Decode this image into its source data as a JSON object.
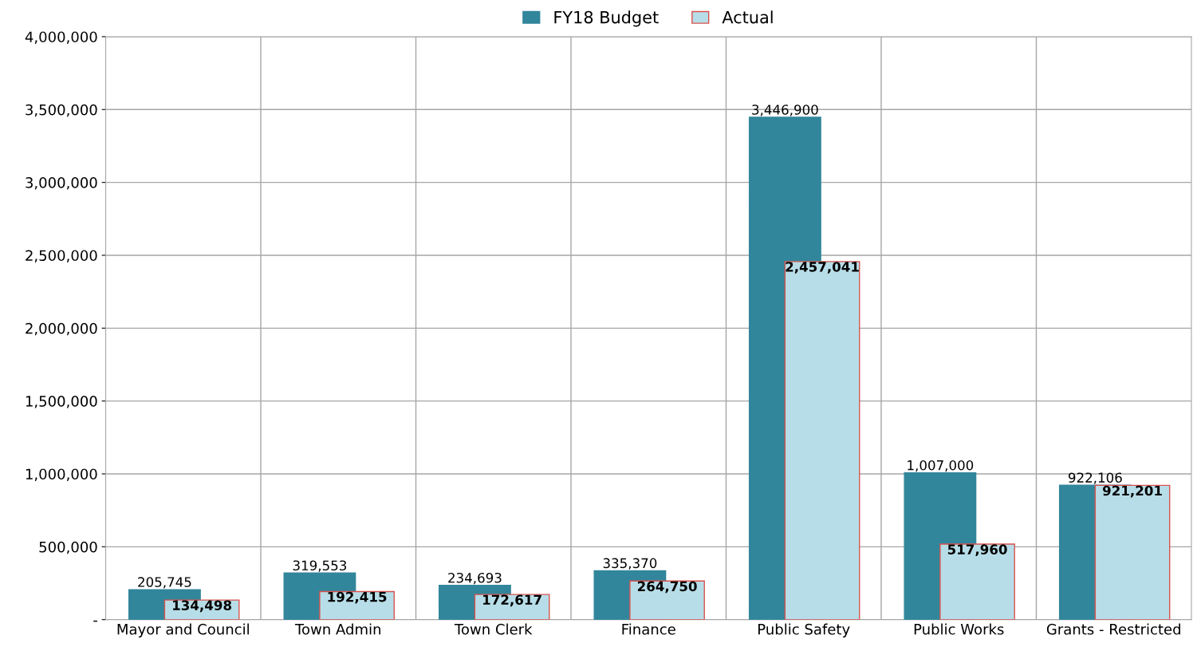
{
  "chart_data": {
    "type": "bar",
    "categories": [
      "Mayor and Council",
      "Town Admin",
      "Town Clerk",
      "Finance",
      "Public Safety",
      "Public Works",
      "Grants - Restricted"
    ],
    "series": [
      {
        "name": "FY18 Budget",
        "color": "#31869b",
        "values": [
          205745,
          319553,
          234693,
          335370,
          3446900,
          1007000,
          922106
        ],
        "value_labels": [
          "205,745",
          "319,553",
          "234,693",
          "335,370",
          "3,446,900",
          "1,007,000",
          "922,106"
        ]
      },
      {
        "name": "Actual",
        "color": "#b7dee8",
        "values": [
          134498,
          192415,
          172617,
          264750,
          2457041,
          517960,
          921201
        ],
        "value_labels": [
          "134,498",
          "192,415",
          "172,617",
          "264,750",
          "2,457,041",
          "517,960",
          "921,201"
        ]
      }
    ],
    "ylim": [
      0,
      4000000
    ],
    "yticks": [
      {
        "value": 0,
        "label": "-"
      },
      {
        "value": 500000,
        "label": "500,000"
      },
      {
        "value": 1000000,
        "label": "1,000,000"
      },
      {
        "value": 1500000,
        "label": "1,500,000"
      },
      {
        "value": 2000000,
        "label": "2,000,000"
      },
      {
        "value": 2500000,
        "label": "2,500,000"
      },
      {
        "value": 3000000,
        "label": "3,000,000"
      },
      {
        "value": 3500000,
        "label": "3,500,000"
      },
      {
        "value": 4000000,
        "label": "4,000,000"
      }
    ],
    "grid": true,
    "legend": "top"
  }
}
